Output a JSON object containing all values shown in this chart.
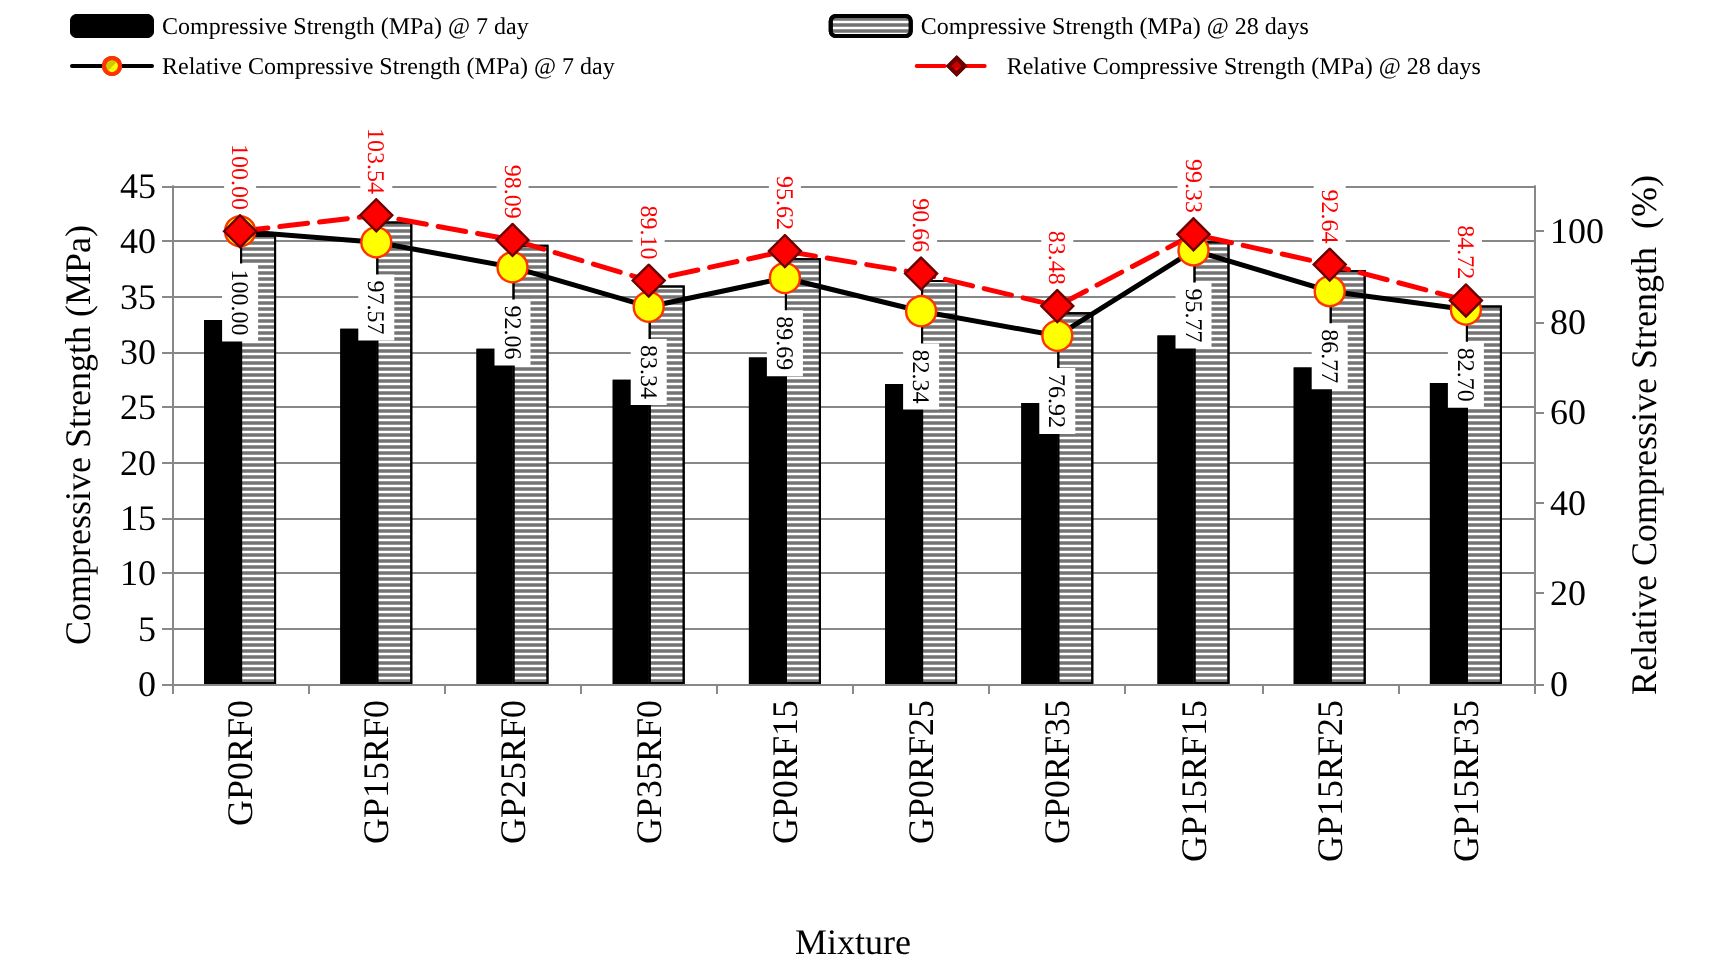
{
  "chart_data": {
    "type": "bar",
    "xlabel": "Mixture",
    "ylabel": "Compressive Strength (MPa)",
    "y2label": "Relative Compressive Strength  (%)",
    "categories": [
      "GP0RF0",
      "GP15RF0",
      "GP25RF0",
      "GP35RF0",
      "GP0RF15",
      "GP0RF25",
      "GP0RF35",
      "GP15RF15",
      "GP15RF25",
      "GP15RF35"
    ],
    "series": [
      {
        "name": "Compressive Strength (MPa) @ 7 day",
        "color": "#000000",
        "values": [
          32.9,
          32.1,
          30.3,
          27.5,
          29.5,
          27.1,
          25.4,
          31.5,
          28.6,
          27.2
        ]
      },
      {
        "name": "Compressive Strength (MPa) @ 28 days",
        "color": "#ffffff",
        "values": [
          40.6,
          41.8,
          39.7,
          36.0,
          38.5,
          36.5,
          33.6,
          40.0,
          37.4,
          34.2
        ]
      },
      {
        "name": "Relative Compressive Strength (MPa) @ 7 day",
        "type": "line",
        "axis": "y2",
        "color": "#000000",
        "marker": "circle",
        "line_style": "solid",
        "values": [
          100.0,
          97.57,
          92.06,
          83.34,
          89.69,
          82.34,
          76.92,
          95.77,
          86.77,
          82.7
        ],
        "value_labels": [
          "100.00",
          "97.57",
          "92.06",
          "83.34",
          "89.69",
          "82.34",
          "76.92",
          "95.77",
          "86.77",
          "82.70"
        ]
      },
      {
        "name": "Relative Compressive Strength (MPa) @ 28 days",
        "type": "line",
        "axis": "y2",
        "color": "#ff0000",
        "marker": "diamond",
        "line_style": "dashed",
        "values": [
          100.0,
          103.54,
          98.09,
          89.1,
          95.62,
          90.66,
          83.48,
          99.33,
          92.64,
          84.72
        ],
        "value_labels": [
          "100.00",
          "103.54",
          "98.09",
          "89.10",
          "95.62",
          "90.66",
          "83.48",
          "99.33",
          "92.64",
          "84.72"
        ]
      }
    ],
    "ylim": [
      0,
      45
    ],
    "yticks": [
      0,
      5,
      10,
      15,
      20,
      25,
      30,
      35,
      40,
      45
    ],
    "y2lim": [
      0,
      110
    ],
    "y2ticks": [
      0,
      20,
      40,
      60,
      80,
      100
    ],
    "grid": "y",
    "legend": "top"
  }
}
